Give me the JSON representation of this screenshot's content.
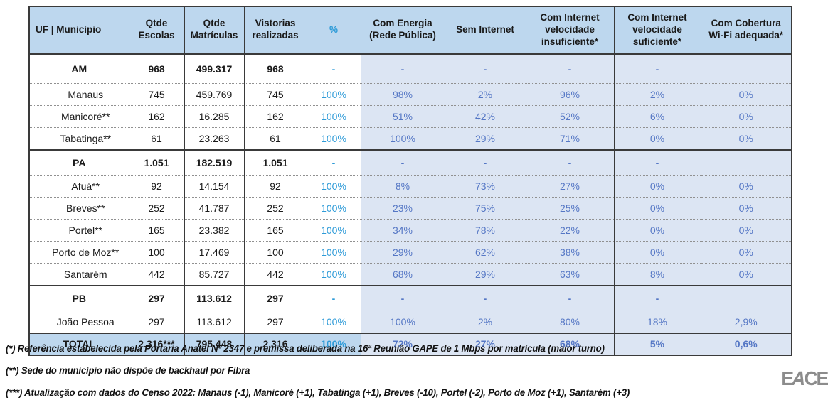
{
  "table": {
    "columns": [
      {
        "key": "uf_municipio",
        "label": "UF | Município",
        "accent": false
      },
      {
        "key": "qtde_escolas",
        "label": "Qtde Escolas",
        "accent": false
      },
      {
        "key": "qtde_matriculas",
        "label": "Qtde Matrículas",
        "accent": false
      },
      {
        "key": "vistorias_realizadas",
        "label": "Vistorias realizadas",
        "accent": false
      },
      {
        "key": "percentual",
        "label": "%",
        "accent": true
      },
      {
        "key": "com_energia_rede_publica",
        "label": "Com Energia (Rede Pública)",
        "accent": false
      },
      {
        "key": "sem_internet",
        "label": "Sem Internet",
        "accent": false
      },
      {
        "key": "com_internet_velocidade_insuficiente",
        "label": "Com Internet velocidade insuficiente*",
        "accent": false
      },
      {
        "key": "com_internet_velocidade_suficiente",
        "label": "Com Internet velocidade suficiente*",
        "accent": false
      },
      {
        "key": "com_cobertura_wifi_adequada",
        "label": "Com Cobertura Wi-Fi adequada*",
        "accent": false
      }
    ],
    "rows": [
      {
        "type": "group",
        "cells": [
          "AM",
          "968",
          "499.317",
          "968",
          "-",
          "-",
          "-",
          "-",
          "-",
          ""
        ]
      },
      {
        "type": "sub",
        "cells": [
          "Manaus",
          "745",
          "459.769",
          "745",
          "100%",
          "98%",
          "2%",
          "96%",
          "2%",
          "0%"
        ]
      },
      {
        "type": "sub",
        "cells": [
          "Manicoré**",
          "162",
          "16.285",
          "162",
          "100%",
          "51%",
          "42%",
          "52%",
          "6%",
          "0%"
        ]
      },
      {
        "type": "sub",
        "cells": [
          "Tabatinga**",
          "61",
          "23.263",
          "61",
          "100%",
          "100%",
          "29%",
          "71%",
          "0%",
          "0%"
        ]
      },
      {
        "type": "group",
        "cells": [
          "PA",
          "1.051",
          "182.519",
          "1.051",
          "-",
          "-",
          "-",
          "-",
          "-",
          ""
        ]
      },
      {
        "type": "sub",
        "cells": [
          "Afuá**",
          "92",
          "14.154",
          "92",
          "100%",
          "8%",
          "73%",
          "27%",
          "0%",
          "0%"
        ]
      },
      {
        "type": "sub",
        "cells": [
          "Breves**",
          "252",
          "41.787",
          "252",
          "100%",
          "23%",
          "75%",
          "25%",
          "0%",
          "0%"
        ]
      },
      {
        "type": "sub",
        "cells": [
          "Portel**",
          "165",
          "23.382",
          "165",
          "100%",
          "34%",
          "78%",
          "22%",
          "0%",
          "0%"
        ]
      },
      {
        "type": "sub",
        "cells": [
          "Porto de Moz**",
          "100",
          "17.469",
          "100",
          "100%",
          "29%",
          "62%",
          "38%",
          "0%",
          "0%"
        ]
      },
      {
        "type": "sub",
        "cells": [
          "Santarém",
          "442",
          "85.727",
          "442",
          "100%",
          "68%",
          "29%",
          "63%",
          "8%",
          "0%"
        ]
      },
      {
        "type": "group",
        "cells": [
          "PB",
          "297",
          "113.612",
          "297",
          "-",
          "-",
          "-",
          "-",
          "-",
          ""
        ]
      },
      {
        "type": "sub",
        "cells": [
          "João Pessoa",
          "297",
          "113.612",
          "297",
          "100%",
          "100%",
          "2%",
          "80%",
          "18%",
          "2,9%"
        ]
      },
      {
        "type": "total",
        "cells": [
          "TOTAL",
          "2.316***",
          "795.448",
          "2.316",
          "100%",
          "72%",
          "27%",
          "68%",
          "5%",
          "0,6%"
        ]
      }
    ]
  },
  "footnotes": [
    "(*) Referência estabelecida pela Portaria Anatel Nº 2347 e premissa deliberada na 16ª Reunião GAPE de 1 Mbps por matrícula (maior turno)",
    "(**) Sede do município não dispõe de backhaul por Fibra",
    "(***) Atualização com dados do Censo 2022: Manaus (-1), Manicoré (+1), Tabatinga (+1), Breves (-10), Portel (-2), Porto de Moz (+1), Santarém (+3)"
  ],
  "logo_text": "EACE",
  "colors": {
    "header_bg": "#BDD7EE",
    "tint_bg": "#DCE5F3",
    "accent_blue": "#2E9BD8",
    "muted_blue": "#5577C5",
    "border_dark": "#3A3A3A",
    "dotted_separator": "#909090",
    "logo_gray": "#8C8C8C"
  }
}
